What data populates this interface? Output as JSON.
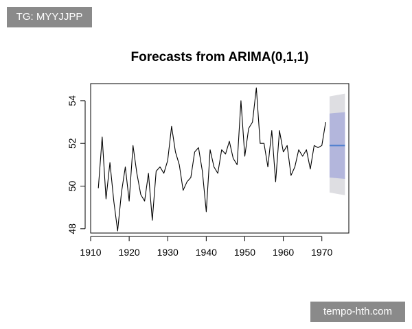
{
  "tag_label": "TG: MYYJJPP",
  "watermark_label": "tempo-hth.com",
  "colors": {
    "series": "#000000",
    "forecast": "#4f7fcf",
    "band_80": "#b3b6dc",
    "band_95": "#dedee2"
  },
  "chart_data": {
    "type": "line",
    "title": "Forecasts from ARIMA(0,1,1)",
    "xlabel": "",
    "ylabel": "",
    "xlim": [
      1910,
      1977
    ],
    "ylim": [
      47.8,
      54.8
    ],
    "xticks": [
      1910,
      1920,
      1930,
      1940,
      1950,
      1960,
      1970
    ],
    "yticks": [
      48,
      50,
      52,
      54
    ],
    "grid": false,
    "series": [
      {
        "x": [
          1912,
          1913,
          1914,
          1915,
          1916,
          1917,
          1918,
          1919,
          1920,
          1921,
          1922,
          1923,
          1924,
          1925,
          1926,
          1927,
          1928,
          1929,
          1930,
          1931,
          1932,
          1933,
          1934,
          1935,
          1936,
          1937,
          1938,
          1939,
          1940,
          1941,
          1942,
          1943,
          1944,
          1945,
          1946,
          1947,
          1948,
          1949,
          1950,
          1951,
          1952,
          1953,
          1954,
          1955,
          1956,
          1957,
          1958,
          1959,
          1960,
          1961,
          1962,
          1963,
          1964,
          1965,
          1966,
          1967,
          1968,
          1969,
          1970,
          1971
        ],
        "values": [
          49.9,
          52.3,
          49.4,
          51.1,
          49.3,
          47.9,
          49.7,
          50.9,
          49.3,
          51.9,
          50.6,
          49.6,
          49.3,
          50.6,
          48.4,
          50.7,
          50.9,
          50.6,
          51.2,
          52.8,
          51.6,
          51.0,
          49.8,
          50.2,
          50.4,
          51.6,
          51.8,
          50.7,
          48.8,
          51.7,
          50.9,
          50.6,
          51.7,
          51.5,
          52.1,
          51.3,
          51.0,
          54.0,
          51.4,
          52.7,
          53.0,
          54.6,
          52.0,
          52.0,
          50.9,
          52.6,
          50.2,
          52.6,
          51.6,
          51.9,
          50.5,
          50.9,
          51.7,
          51.4,
          51.7,
          50.8,
          51.9,
          51.8,
          51.9,
          53.0
        ]
      }
    ],
    "forecast": {
      "x": [
        1972,
        1976
      ],
      "mean": 51.9,
      "lo80": 50.4,
      "hi80": 53.4,
      "lo95": 49.7,
      "hi95": 54.2
    }
  }
}
